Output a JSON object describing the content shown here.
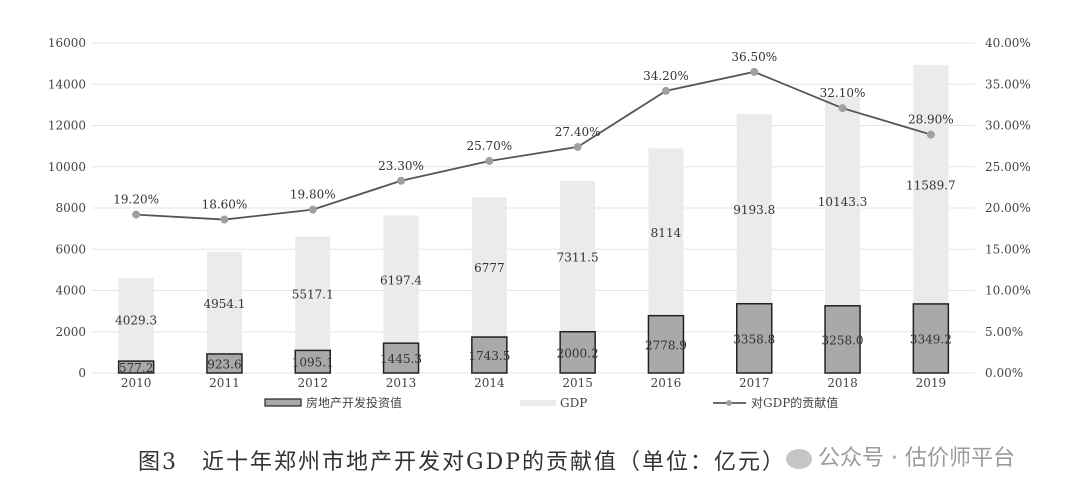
{
  "chart_data": {
    "type": "bar",
    "stacked": true,
    "categories": [
      "2010",
      "2011",
      "2012",
      "2013",
      "2014",
      "2015",
      "2016",
      "2017",
      "2018",
      "2019"
    ],
    "series": [
      {
        "name": "房地产开发投资值",
        "type": "bar",
        "axis": "left",
        "color": "#a9a9a9",
        "values": [
          577.2,
          923.6,
          1095.1,
          1445.3,
          1743.5,
          2000.2,
          2778.9,
          3358.8,
          3258.0,
          3349.2
        ],
        "labels": [
          "577.2",
          "923.6",
          "1095.1",
          "1445.3",
          "1743.5",
          "2000.2",
          "2778.9",
          "3358.8",
          "3258.0",
          "3349.2"
        ]
      },
      {
        "name": "GDP",
        "type": "bar",
        "axis": "left",
        "color": "#ebebeb",
        "values": [
          4029.3,
          4954.1,
          5517.1,
          6197.4,
          6777,
          7311.5,
          8114,
          9193.8,
          10143.3,
          11589.7
        ],
        "labels": [
          "4029.3",
          "4954.1",
          "5517.1",
          "6197.4",
          "6777",
          "7311.5",
          "8114",
          "9193.8",
          "10143.3",
          "11589.7"
        ]
      },
      {
        "name": "对GDP的贡献值",
        "type": "line",
        "axis": "right",
        "color": "#555555",
        "values": [
          19.2,
          18.6,
          19.8,
          23.3,
          25.7,
          27.4,
          34.2,
          36.5,
          32.1,
          28.9
        ],
        "labels": [
          "19.20%",
          "18.60%",
          "19.80%",
          "23.30%",
          "25.70%",
          "27.40%",
          "34.20%",
          "36.50%",
          "32.10%",
          "28.90%"
        ]
      }
    ],
    "ylim": [
      0,
      16000
    ],
    "yticks": [
      "0",
      "2000",
      "4000",
      "6000",
      "8000",
      "10000",
      "12000",
      "14000",
      "16000"
    ],
    "y2lim": [
      0,
      40
    ],
    "y2ticks": [
      "0.00%",
      "5.00%",
      "10.00%",
      "15.00%",
      "20.00%",
      "25.00%",
      "30.00%",
      "35.00%",
      "40.00%"
    ],
    "grid": true,
    "legend": "bottom"
  },
  "caption": "图3　近十年郑州市地产开发对GDP的贡献值（单位：亿元）",
  "watermark": "公众号 · 估价师平台"
}
